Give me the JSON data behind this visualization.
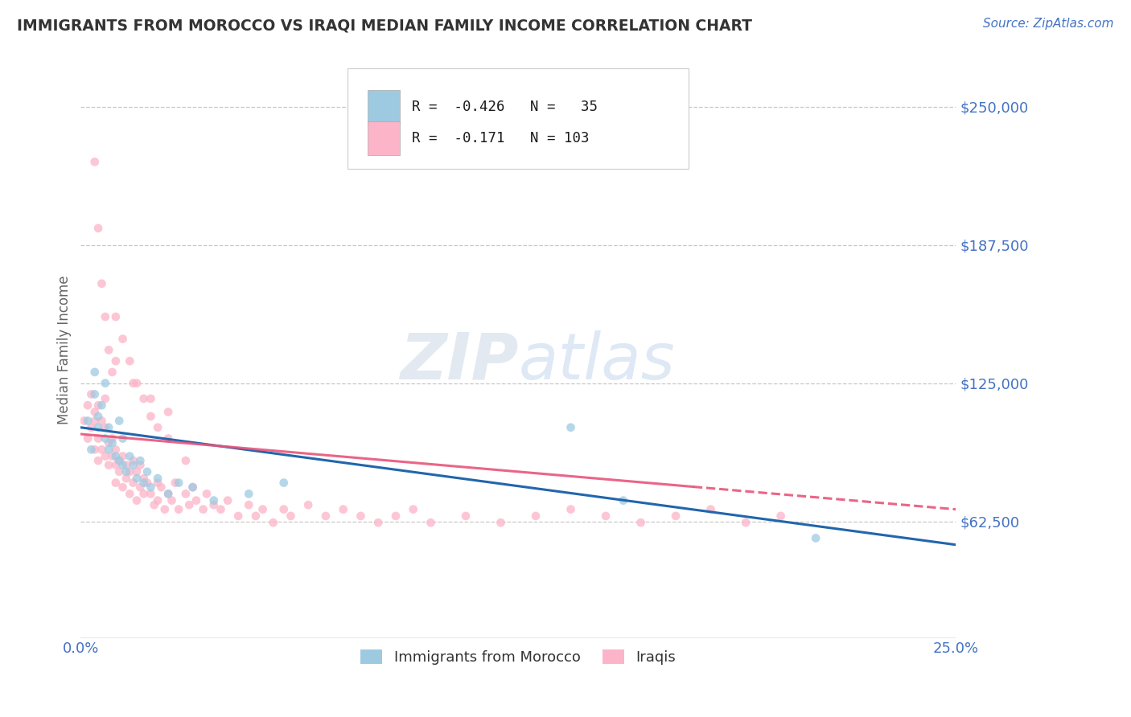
{
  "title": "IMMIGRANTS FROM MOROCCO VS IRAQI MEDIAN FAMILY INCOME CORRELATION CHART",
  "source": "Source: ZipAtlas.com",
  "ylabel": "Median Family Income",
  "xmin": 0.0,
  "xmax": 0.25,
  "ymin": 10000,
  "ymax": 270000,
  "yticks": [
    62500,
    125000,
    187500,
    250000
  ],
  "ytick_labels": [
    "$62,500",
    "$125,000",
    "$187,500",
    "$250,000"
  ],
  "xticks": [
    0.0,
    0.05,
    0.1,
    0.15,
    0.2,
    0.25
  ],
  "xtick_labels": [
    "0.0%",
    "",
    "",
    "",
    "",
    "25.0%"
  ],
  "blue_color": "#9ecae1",
  "pink_color": "#fcb4c8",
  "blue_line_color": "#2166ac",
  "pink_line_color": "#e8547a",
  "legend_label_blue": "Immigrants from Morocco",
  "legend_label_pink": "Iraqis",
  "watermark": "ZIPatlas",
  "background_color": "#ffffff",
  "title_color": "#333333",
  "axis_label_color": "#666666",
  "tick_color": "#4472c4",
  "grid_color": "#c8c8c8",
  "blue_scatter_x": [
    0.002,
    0.003,
    0.004,
    0.004,
    0.005,
    0.005,
    0.006,
    0.007,
    0.007,
    0.008,
    0.008,
    0.009,
    0.01,
    0.011,
    0.011,
    0.012,
    0.012,
    0.013,
    0.014,
    0.015,
    0.016,
    0.017,
    0.018,
    0.019,
    0.02,
    0.022,
    0.025,
    0.028,
    0.032,
    0.038,
    0.048,
    0.058,
    0.14,
    0.155,
    0.21
  ],
  "blue_scatter_y": [
    108000,
    95000,
    120000,
    130000,
    110000,
    105000,
    115000,
    100000,
    125000,
    95000,
    105000,
    98000,
    92000,
    108000,
    90000,
    88000,
    100000,
    85000,
    92000,
    88000,
    82000,
    90000,
    80000,
    85000,
    78000,
    82000,
    75000,
    80000,
    78000,
    72000,
    75000,
    80000,
    105000,
    72000,
    55000
  ],
  "pink_scatter_x": [
    0.001,
    0.002,
    0.002,
    0.003,
    0.003,
    0.004,
    0.004,
    0.004,
    0.005,
    0.005,
    0.005,
    0.006,
    0.006,
    0.007,
    0.007,
    0.007,
    0.008,
    0.008,
    0.009,
    0.009,
    0.01,
    0.01,
    0.01,
    0.011,
    0.011,
    0.012,
    0.012,
    0.013,
    0.013,
    0.014,
    0.014,
    0.015,
    0.015,
    0.016,
    0.016,
    0.017,
    0.017,
    0.018,
    0.018,
    0.019,
    0.02,
    0.021,
    0.022,
    0.022,
    0.023,
    0.024,
    0.025,
    0.026,
    0.027,
    0.028,
    0.03,
    0.031,
    0.032,
    0.033,
    0.035,
    0.036,
    0.038,
    0.04,
    0.042,
    0.045,
    0.048,
    0.05,
    0.052,
    0.055,
    0.058,
    0.06,
    0.065,
    0.07,
    0.075,
    0.08,
    0.085,
    0.09,
    0.095,
    0.1,
    0.11,
    0.12,
    0.13,
    0.14,
    0.15,
    0.16,
    0.17,
    0.18,
    0.19,
    0.2,
    0.01,
    0.015,
    0.02,
    0.025,
    0.004,
    0.005,
    0.006,
    0.007,
    0.008,
    0.009,
    0.01,
    0.012,
    0.014,
    0.016,
    0.018,
    0.02,
    0.022,
    0.025,
    0.03
  ],
  "pink_scatter_y": [
    108000,
    100000,
    115000,
    105000,
    120000,
    95000,
    108000,
    112000,
    100000,
    115000,
    90000,
    108000,
    95000,
    105000,
    92000,
    118000,
    98000,
    88000,
    92000,
    100000,
    88000,
    95000,
    80000,
    90000,
    85000,
    78000,
    92000,
    82000,
    88000,
    75000,
    85000,
    80000,
    90000,
    72000,
    85000,
    78000,
    88000,
    82000,
    75000,
    80000,
    75000,
    70000,
    80000,
    72000,
    78000,
    68000,
    75000,
    72000,
    80000,
    68000,
    75000,
    70000,
    78000,
    72000,
    68000,
    75000,
    70000,
    68000,
    72000,
    65000,
    70000,
    65000,
    68000,
    62000,
    68000,
    65000,
    70000,
    65000,
    68000,
    65000,
    62000,
    65000,
    68000,
    62000,
    65000,
    62000,
    65000,
    68000,
    65000,
    62000,
    65000,
    68000,
    62000,
    65000,
    135000,
    125000,
    118000,
    112000,
    225000,
    195000,
    170000,
    155000,
    140000,
    130000,
    155000,
    145000,
    135000,
    125000,
    118000,
    110000,
    105000,
    100000,
    90000
  ]
}
